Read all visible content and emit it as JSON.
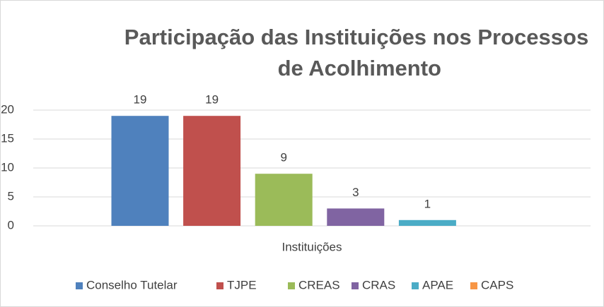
{
  "chart_data": {
    "type": "bar",
    "title": "Participação das Instituições nos Processos de Acolhimento",
    "categories": [
      "Instituições"
    ],
    "series": [
      {
        "name": "Conselho Tutelar",
        "color": "#4f81bd",
        "values": [
          19
        ]
      },
      {
        "name": "TJPE",
        "color": "#c0504d",
        "values": [
          19
        ]
      },
      {
        "name": "CREAS",
        "color": "#9bbb59",
        "values": [
          9
        ]
      },
      {
        "name": "CRAS",
        "color": "#8064a2",
        "values": [
          3
        ]
      },
      {
        "name": "APAE",
        "color": "#4bacc6",
        "values": [
          1
        ]
      },
      {
        "name": "CAPS",
        "color": "#f79646",
        "values": [
          null
        ]
      }
    ],
    "ylim": [
      0,
      20
    ],
    "yticks": [
      0,
      5,
      10,
      15,
      20
    ],
    "grid": true,
    "legend": "bottom"
  }
}
